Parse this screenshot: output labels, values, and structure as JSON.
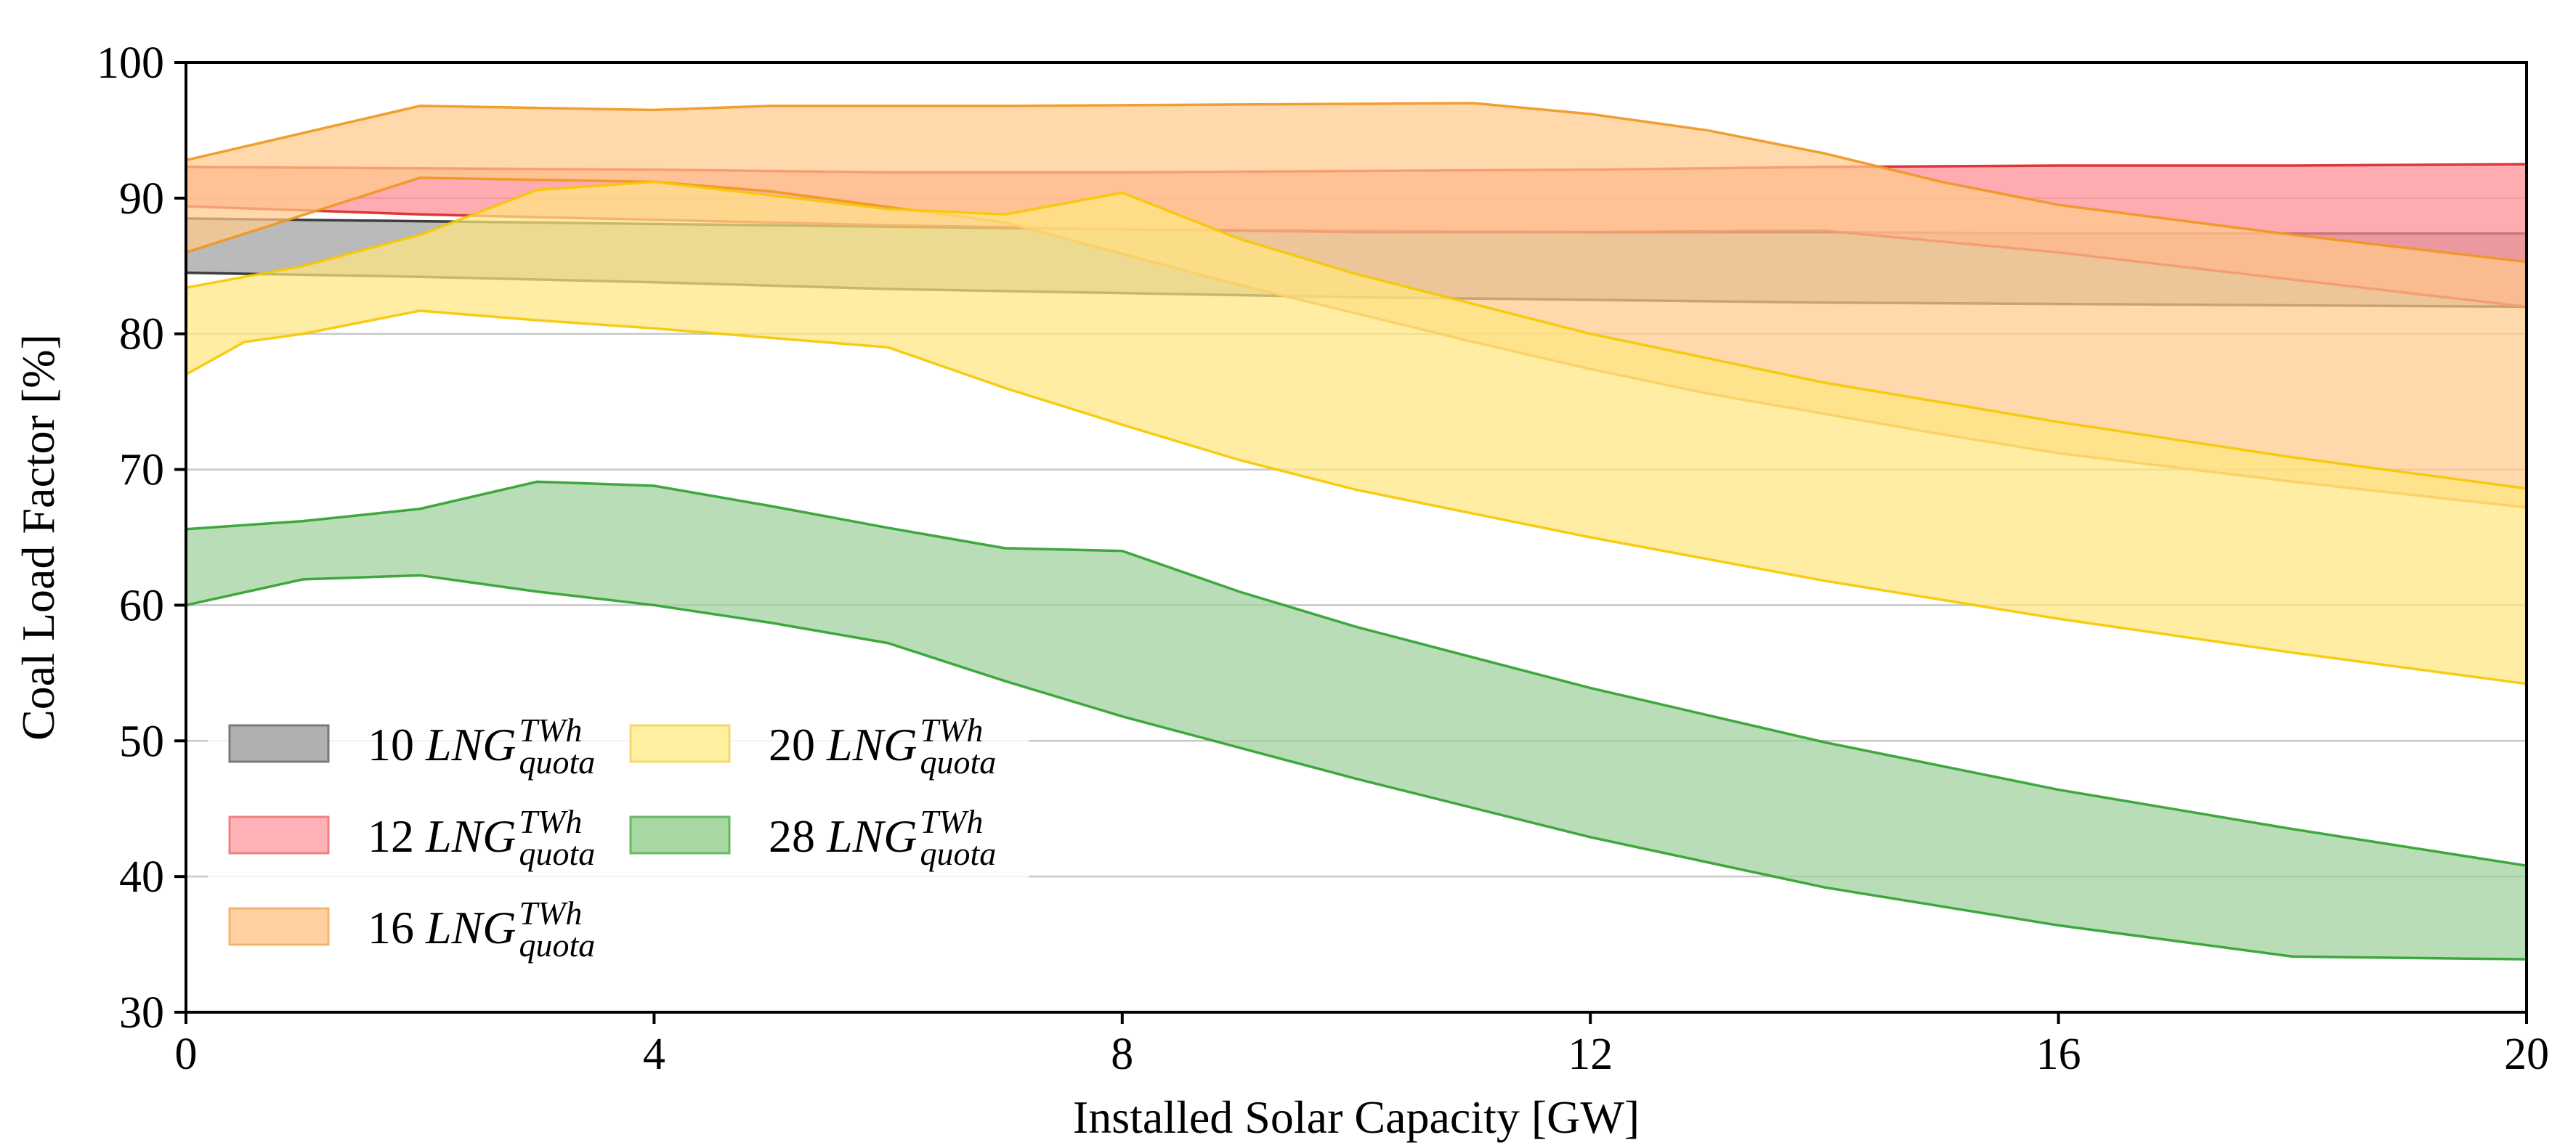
{
  "chart_data": {
    "type": "area",
    "title": "",
    "xlabel": "Installed Solar Capacity [GW]",
    "ylabel": "Coal Load Factor [%]",
    "xlim": [
      0,
      20
    ],
    "ylim": [
      30,
      100
    ],
    "xticks": [
      "0",
      "4",
      "8",
      "12",
      "16",
      "20"
    ],
    "yticks": [
      "30",
      "40",
      "50",
      "60",
      "70",
      "80",
      "90",
      "100"
    ],
    "grid": "horizontal",
    "legend": {
      "placement": "lower-left",
      "columns": 2
    },
    "series": [
      {
        "name": "10 LNG quota TWh",
        "label_num": "10",
        "label_base": "LNG",
        "label_sup": "TWh",
        "label_sub": "quota",
        "fill": "#a0a0a0",
        "edge": "#2b2b2b",
        "legend_fill": "#b0b0b0",
        "legend_edge": "#7a7a7a",
        "x": [
          0,
          2,
          4,
          6,
          8,
          10,
          12,
          14,
          16,
          18,
          20
        ],
        "upper": [
          88.5,
          88.3,
          88.1,
          87.9,
          87.7,
          87.6,
          87.5,
          87.5,
          87.4,
          87.4,
          87.4
        ],
        "lower": [
          84.5,
          84.2,
          83.8,
          83.3,
          83.0,
          82.7,
          82.5,
          82.3,
          82.2,
          82.1,
          82.0
        ]
      },
      {
        "name": "12 LNG quota TWh",
        "label_num": "12",
        "label_base": "LNG",
        "label_sup": "TWh",
        "label_sub": "quota",
        "fill": "#ff8a94",
        "edge": "#d62728",
        "legend_fill": "#ffb3b8",
        "legend_edge": "#f08080",
        "x": [
          0,
          2,
          4,
          6,
          8,
          10,
          12,
          14,
          16,
          18,
          20
        ],
        "upper": [
          92.3,
          92.2,
          92.1,
          91.9,
          91.9,
          92.0,
          92.1,
          92.3,
          92.4,
          92.4,
          92.5
        ],
        "lower": [
          89.4,
          88.8,
          88.4,
          88.0,
          87.7,
          87.5,
          87.5,
          87.6,
          86.0,
          84.0,
          82.0
        ]
      },
      {
        "name": "16 LNG quota TWh",
        "label_num": "16",
        "label_base": "LNG",
        "label_sup": "TWh",
        "label_sub": "quota",
        "fill": "#ffc98a",
        "edge": "#f0961e",
        "legend_fill": "#ffd0a0",
        "legend_edge": "#f5b46e",
        "x": [
          0,
          2,
          4,
          5,
          7,
          9,
          11,
          12,
          13,
          14,
          15,
          16,
          18,
          20
        ],
        "upper": [
          92.8,
          96.8,
          96.5,
          96.8,
          96.8,
          96.9,
          97.0,
          96.2,
          95.0,
          93.3,
          91.2,
          89.5,
          87.3,
          85.3
        ],
        "lower": [
          86.0,
          91.5,
          91.2,
          90.5,
          88.2,
          83.6,
          79.4,
          77.4,
          75.6,
          74.1,
          72.6,
          71.2,
          69.1,
          67.2
        ]
      },
      {
        "name": "20 LNG quota TWh",
        "label_num": "20",
        "label_base": "LNG",
        "label_sup": "TWh",
        "label_sub": "quota",
        "fill": "#ffe680",
        "edge": "#f5c800",
        "legend_fill": "#fff0a0",
        "legend_edge": "#f5d870",
        "x": [
          0,
          0.5,
          1,
          2,
          3,
          4,
          6,
          7,
          8,
          9,
          10,
          12,
          14,
          16,
          18,
          20
        ],
        "upper": [
          83.4,
          84.2,
          85.0,
          87.3,
          90.6,
          91.2,
          89.2,
          88.8,
          90.4,
          87.0,
          84.4,
          80.0,
          76.4,
          73.5,
          70.9,
          68.6
        ],
        "lower": [
          77.0,
          79.4,
          80.0,
          81.7,
          81.0,
          80.4,
          79.0,
          76.0,
          73.3,
          70.7,
          68.5,
          65.0,
          61.8,
          59.0,
          56.5,
          54.2
        ]
      },
      {
        "name": "28 LNG quota TWh",
        "label_num": "28",
        "label_base": "LNG",
        "label_sup": "TWh",
        "label_sub": "quota",
        "fill": "#9ed09a",
        "edge": "#2ca02c",
        "legend_fill": "#a8d8a2",
        "legend_edge": "#6ab866",
        "x": [
          0,
          1,
          2,
          3,
          4,
          5,
          6,
          7,
          8,
          9,
          10,
          12,
          14,
          16,
          18,
          20
        ],
        "upper": [
          65.6,
          66.2,
          67.1,
          69.1,
          68.8,
          67.3,
          65.7,
          64.2,
          64.0,
          61.0,
          58.4,
          53.9,
          49.9,
          46.4,
          43.5,
          40.8
        ],
        "lower": [
          60.0,
          61.9,
          62.2,
          61.0,
          60.0,
          58.7,
          57.2,
          54.4,
          51.8,
          49.5,
          47.2,
          42.9,
          39.2,
          36.4,
          34.1,
          33.9
        ]
      }
    ]
  }
}
